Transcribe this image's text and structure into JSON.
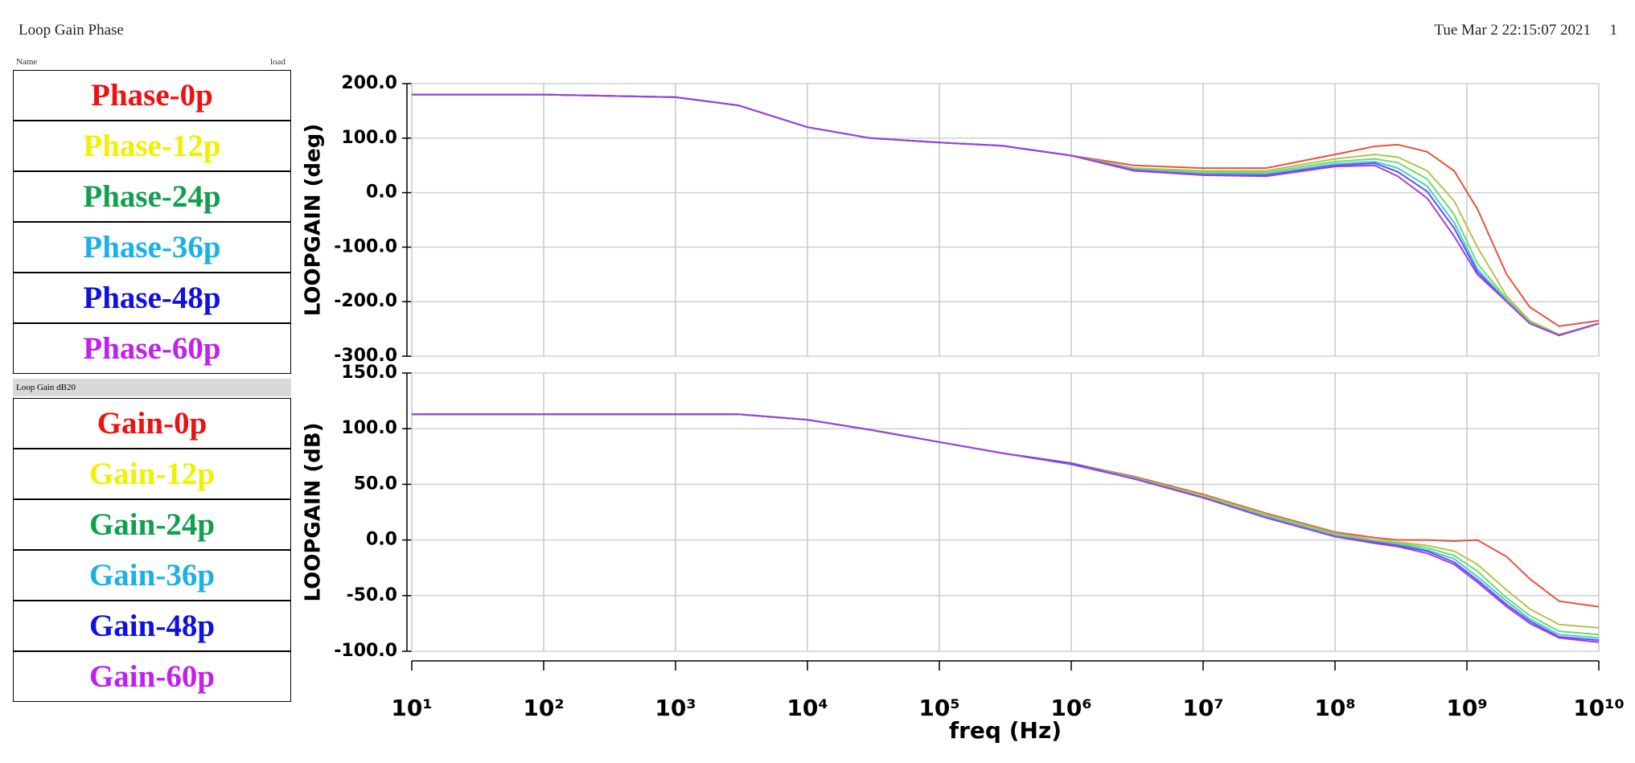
{
  "header": {
    "title": "Loop Gain Phase",
    "timestamp": "Tue Mar 2 22:15:07 2021",
    "page": "1"
  },
  "legend": {
    "name_header": "Name",
    "load_header": "load",
    "gain_header": "Loop Gain dB20"
  },
  "chart_data": [
    {
      "type": "line",
      "ylabel": "LOOPGAIN (deg)",
      "log_x": true,
      "grid": true,
      "x": [
        10,
        100,
        1000,
        3000,
        10000,
        30000,
        100000,
        300000,
        1000000,
        3000000,
        10000000,
        30000000,
        100000000,
        200000000,
        300000000,
        500000000,
        800000000,
        1200000000,
        2000000000,
        3000000000,
        5000000000,
        10000000000
      ],
      "xlim": [
        10,
        10000000000
      ],
      "xticks": [
        {
          "value": 10,
          "label": "10¹"
        },
        {
          "value": 100,
          "label": "10²"
        },
        {
          "value": 1000,
          "label": "10³"
        },
        {
          "value": 10000,
          "label": "10⁴"
        },
        {
          "value": 100000,
          "label": "10⁵"
        },
        {
          "value": 1000000,
          "label": "10⁶"
        },
        {
          "value": 10000000,
          "label": "10⁷"
        },
        {
          "value": 100000000,
          "label": "10⁸"
        },
        {
          "value": 1000000000,
          "label": "10⁹"
        },
        {
          "value": 10000000000,
          "label": "10¹⁰"
        }
      ],
      "ylim": [
        -300,
        200
      ],
      "yticks": [
        {
          "value": -300,
          "label": "-300.0"
        },
        {
          "value": -200,
          "label": "-200.0"
        },
        {
          "value": -100,
          "label": "-100.0"
        },
        {
          "value": 0,
          "label": "0.0"
        },
        {
          "value": 100,
          "label": "100.0"
        },
        {
          "value": 200,
          "label": "200.0"
        }
      ],
      "series": [
        {
          "name": "Phase-0p",
          "color": "#ee1111",
          "line_color": "#e8533f",
          "values": [
            180,
            180,
            175,
            160,
            120,
            100,
            92,
            86,
            68,
            50,
            45,
            45,
            70,
            85,
            88,
            75,
            40,
            -30,
            -150,
            -210,
            -245,
            -235
          ]
        },
        {
          "name": "Phase-12p",
          "color": "#f0f000",
          "line_color": "#b5c24a",
          "values": [
            180,
            180,
            175,
            160,
            120,
            100,
            92,
            86,
            68,
            45,
            40,
            40,
            62,
            70,
            65,
            40,
            -15,
            -100,
            -190,
            -235,
            -260,
            -240
          ]
        },
        {
          "name": "Phase-24p",
          "color": "#10a050",
          "line_color": "#6cdc6c",
          "values": [
            180,
            180,
            175,
            160,
            120,
            100,
            92,
            86,
            68,
            43,
            37,
            37,
            57,
            62,
            55,
            25,
            -40,
            -130,
            -195,
            -238,
            -262,
            -240
          ]
        },
        {
          "name": "Phase-36p",
          "color": "#1ab0e8",
          "line_color": "#4fc7d8",
          "values": [
            180,
            180,
            175,
            160,
            120,
            100,
            92,
            86,
            68,
            42,
            35,
            34,
            53,
            57,
            45,
            12,
            -55,
            -140,
            -198,
            -240,
            -262,
            -240
          ]
        },
        {
          "name": "Phase-48p",
          "color": "#1010e0",
          "line_color": "#5555ee",
          "values": [
            180,
            180,
            175,
            160,
            120,
            100,
            92,
            86,
            68,
            41,
            33,
            32,
            50,
            54,
            38,
            2,
            -65,
            -145,
            -200,
            -240,
            -262,
            -240
          ]
        },
        {
          "name": "Phase-60p",
          "color": "#c020f0",
          "line_color": "#a040e0",
          "values": [
            180,
            180,
            175,
            160,
            120,
            100,
            92,
            86,
            68,
            40,
            32,
            30,
            48,
            50,
            30,
            -10,
            -80,
            -150,
            -200,
            -240,
            -262,
            -240
          ]
        }
      ]
    },
    {
      "type": "line",
      "ylabel": "LOOPGAIN (dB)",
      "xlabel": "freq (Hz)",
      "log_x": true,
      "grid": true,
      "x": [
        10,
        100,
        1000,
        3000,
        10000,
        30000,
        100000,
        300000,
        1000000,
        3000000,
        10000000,
        30000000,
        100000000,
        200000000,
        300000000,
        500000000,
        800000000,
        1200000000,
        2000000000,
        3000000000,
        5000000000,
        10000000000
      ],
      "xlim": [
        10,
        10000000000
      ],
      "xticks": [
        {
          "value": 10,
          "label": "10¹"
        },
        {
          "value": 100,
          "label": "10²"
        },
        {
          "value": 1000,
          "label": "10³"
        },
        {
          "value": 10000,
          "label": "10⁴"
        },
        {
          "value": 100000,
          "label": "10⁵"
        },
        {
          "value": 1000000,
          "label": "10⁶"
        },
        {
          "value": 10000000,
          "label": "10⁷"
        },
        {
          "value": 100000000,
          "label": "10⁸"
        },
        {
          "value": 1000000000,
          "label": "10⁹"
        },
        {
          "value": 10000000000,
          "label": "10¹⁰"
        }
      ],
      "ylim": [
        -100,
        150
      ],
      "yticks": [
        {
          "value": -100,
          "label": "-100.0"
        },
        {
          "value": -50,
          "label": "-50.0"
        },
        {
          "value": 0,
          "label": "0.0"
        },
        {
          "value": 50,
          "label": "50.0"
        },
        {
          "value": 100,
          "label": "100.0"
        },
        {
          "value": 150,
          "label": "150.0"
        }
      ],
      "series": [
        {
          "name": "Gain-0p",
          "color": "#ee1111",
          "line_color": "#e8533f",
          "values": [
            113,
            113,
            113,
            113,
            108,
            99,
            88,
            78,
            69,
            57,
            41,
            24,
            7,
            2,
            0,
            0,
            -1,
            0,
            -15,
            -35,
            -55,
            -60
          ]
        },
        {
          "name": "Gain-12p",
          "color": "#f0f000",
          "line_color": "#b5c24a",
          "values": [
            113,
            113,
            113,
            113,
            108,
            99,
            88,
            78,
            69,
            56,
            40,
            23,
            6,
            0,
            -2,
            -5,
            -10,
            -22,
            -45,
            -62,
            -76,
            -79
          ]
        },
        {
          "name": "Gain-24p",
          "color": "#10a050",
          "line_color": "#6cdc6c",
          "values": [
            113,
            113,
            113,
            113,
            108,
            99,
            88,
            78,
            69,
            56,
            39,
            22,
            5,
            -1,
            -3,
            -7,
            -14,
            -28,
            -52,
            -68,
            -82,
            -85
          ]
        },
        {
          "name": "Gain-36p",
          "color": "#1ab0e8",
          "line_color": "#4fc7d8",
          "values": [
            113,
            113,
            113,
            113,
            108,
            99,
            88,
            78,
            69,
            55,
            38,
            21,
            4,
            -2,
            -4,
            -9,
            -17,
            -33,
            -55,
            -71,
            -85,
            -88
          ]
        },
        {
          "name": "Gain-48p",
          "color": "#1010e0",
          "line_color": "#5555ee",
          "values": [
            113,
            113,
            113,
            113,
            108,
            99,
            88,
            78,
            69,
            55,
            38,
            20,
            3,
            -2,
            -5,
            -10,
            -20,
            -36,
            -58,
            -73,
            -87,
            -90
          ]
        },
        {
          "name": "Gain-60p",
          "color": "#c020f0",
          "line_color": "#a040e0",
          "values": [
            113,
            113,
            113,
            113,
            108,
            99,
            88,
            78,
            68,
            55,
            38,
            20,
            3,
            -3,
            -6,
            -12,
            -22,
            -38,
            -60,
            -75,
            -88,
            -92
          ]
        }
      ]
    }
  ]
}
